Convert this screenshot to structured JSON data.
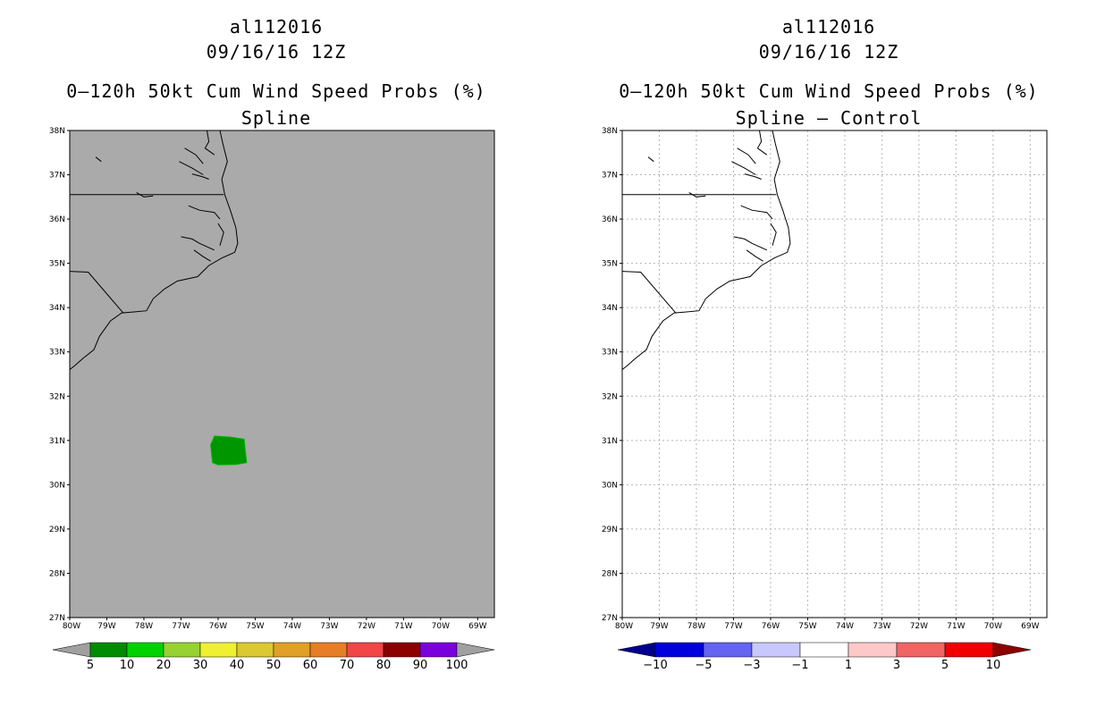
{
  "left": {
    "title_lines": [
      "al112016",
      "09/16/16 12Z",
      "0–120h 50kt Cum Wind Speed Probs (%)",
      "Spline"
    ],
    "colorbar": {
      "labels": [
        "5",
        "10",
        "20",
        "30",
        "40",
        "50",
        "60",
        "70",
        "80",
        "90",
        "100"
      ],
      "colors": [
        "#008c00",
        "#00d200",
        "#96d232",
        "#f0f032",
        "#dcc832",
        "#e1a028",
        "#e67e28",
        "#f04646",
        "#8c0000",
        "#7a00dc"
      ],
      "end_left": "#a0a0a0",
      "end_right": "#a0a0a0"
    },
    "background": "#aaaaaa",
    "prob_region_color": "#009600"
  },
  "right": {
    "title_lines": [
      "al112016",
      "09/16/16 12Z",
      "0–120h 50kt Cum Wind Speed Probs (%)",
      "Spline – Control"
    ],
    "colorbar": {
      "labels": [
        "−10",
        "−5",
        "−3",
        "−1",
        "1",
        "3",
        "5",
        "10"
      ],
      "colors": [
        "#0000dc",
        "#6464f0",
        "#c8c8ff",
        "#ffffff",
        "#ffc8c8",
        "#f06464",
        "#f00000"
      ],
      "end_left": "#00008c",
      "end_right": "#8c0000"
    },
    "background": "#ffffff",
    "grid": true
  },
  "axes": {
    "lat_labels": [
      "38N",
      "37N",
      "36N",
      "35N",
      "34N",
      "33N",
      "32N",
      "31N",
      "30N",
      "29N",
      "28N",
      "27N"
    ],
    "lon_labels": [
      "80W",
      "79W",
      "78W",
      "77W",
      "76W",
      "75W",
      "74W",
      "73W",
      "72W",
      "71W",
      "70W",
      "69W"
    ]
  }
}
